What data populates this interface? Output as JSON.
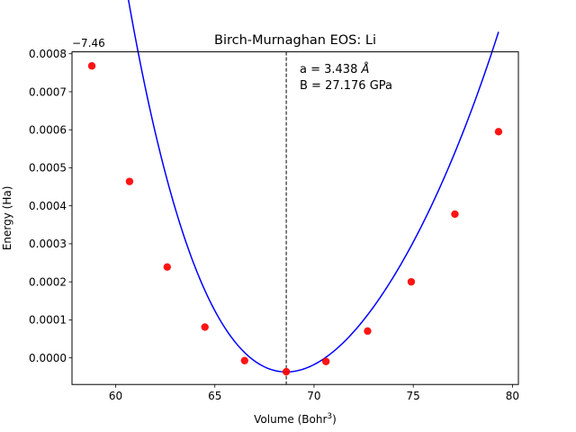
{
  "chart_data": {
    "type": "scatter",
    "title": "Birch-Murnaghan EOS: Li",
    "xlabel": "Volume (Bohr$^3$)",
    "xlabel_main": "Volume (Bohr",
    "xlabel_sup": "3",
    "xlabel_close": ")",
    "ylabel": "Energy (Ha)",
    "y_offset_label": "−7.46",
    "xlim": [
      57.8,
      80.3
    ],
    "ylim": [
      -7e-05,
      0.000805
    ],
    "xticks": [
      60,
      65,
      70,
      75,
      80
    ],
    "xtick_labels": [
      "60",
      "65",
      "70",
      "75",
      "80"
    ],
    "yticks": [
      0.0,
      0.0001,
      0.0002,
      0.0003,
      0.0004,
      0.0005,
      0.0006,
      0.0007,
      0.0008
    ],
    "ytick_labels": [
      "0.0000",
      "0.0001",
      "0.0002",
      "0.0003",
      "0.0004",
      "0.0005",
      "0.0006",
      "0.0007",
      "0.0008"
    ],
    "series": [
      {
        "kind": "points",
        "color": "#ff0000",
        "x": [
          58.8,
          60.7,
          62.6,
          64.5,
          66.5,
          68.6,
          70.6,
          72.7,
          74.9,
          77.1,
          79.3
        ],
        "y": [
          0.000768,
          0.000464,
          0.000239,
          8.1e-05,
          -7.2e-06,
          -3.65e-05,
          -9.5e-06,
          7.05e-05,
          0.0002,
          0.000378,
          0.000595
        ]
      },
      {
        "kind": "fit-curve",
        "color": "#0000ff",
        "fit": {
          "E0": -3.7e-05,
          "V0": 68.6,
          "c2": 1.05e-05,
          "c3": -4.65e-07,
          "c4": 2e-08
        },
        "x_range": [
          58.8,
          79.3
        ]
      }
    ],
    "equilibrium_volume": 68.6,
    "annotations": [
      "a = 3.438 Å",
      "B = 27.176 GPa"
    ],
    "annotation_a_main": "a = 3.438 ",
    "annotation_a_unit": "Å",
    "grid": false
  }
}
